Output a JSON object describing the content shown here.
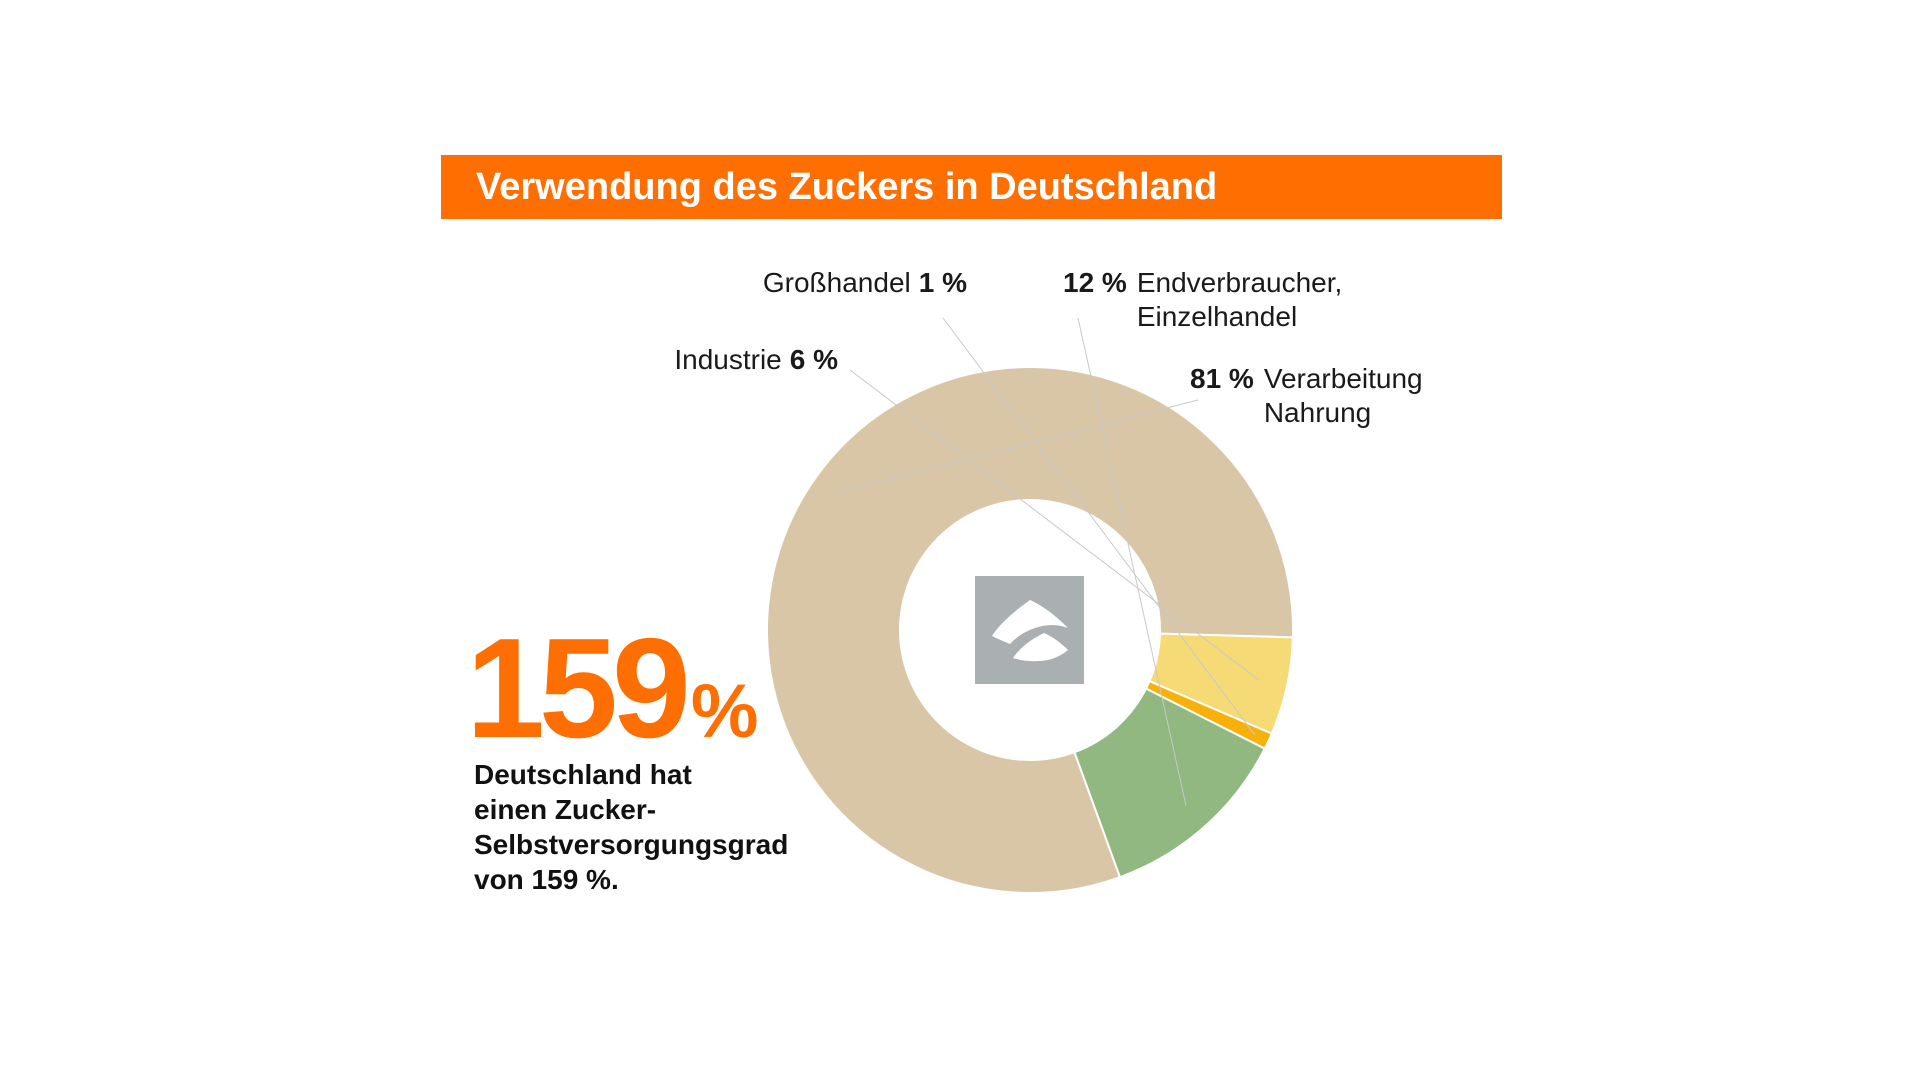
{
  "title": "Verwendung des Zuckers in Deutschland",
  "highlight": {
    "value": "159",
    "unit": "%",
    "text_lines": [
      "Deutschland hat",
      "einen Zucker-",
      "Selbstversorgungsgrad",
      "von 159 %."
    ]
  },
  "colors": {
    "accent": "#ff6e00",
    "logo_box": "#aab0b2"
  },
  "center_icon": "sugar-pile-icon",
  "chart_data": {
    "type": "pie",
    "variant": "donut",
    "title": "Verwendung des Zuckers in Deutschland",
    "unit": "%",
    "slices": [
      {
        "name_lines": [
          "Verarbeitung",
          "Nahrung"
        ],
        "value": 81,
        "value_label": "81 %",
        "color": "#d8c6a6",
        "label_side": "right"
      },
      {
        "name_lines": [
          "Industrie"
        ],
        "value": 6,
        "value_label": "6 %",
        "color": "#f5da76",
        "label_side": "left"
      },
      {
        "name_lines": [
          "Großhandel"
        ],
        "value": 1,
        "value_label": "1 %",
        "color": "#f7b10a",
        "label_side": "left"
      },
      {
        "name_lines": [
          "Endverbraucher,",
          "Einzelhandel"
        ],
        "value": 12,
        "value_label": "12 %",
        "color": "#91b880",
        "label_side": "right"
      }
    ]
  }
}
